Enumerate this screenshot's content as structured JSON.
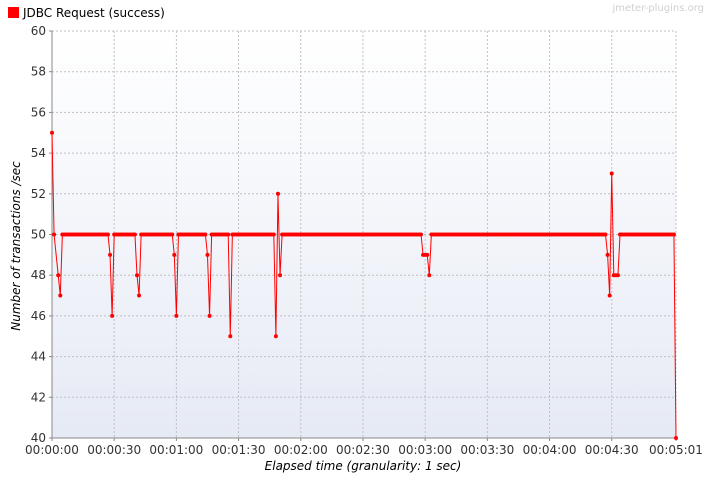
{
  "chart_data": {
    "type": "line",
    "legend_position": "top-left",
    "grid": true,
    "watermark": "jmeter-plugins.org",
    "xlabel": "Elapsed time (granularity: 1 sec)",
    "ylabel": "Number of transactions /sec",
    "xlim": [
      0,
      301
    ],
    "ylim": [
      40,
      60
    ],
    "x_ticks": [
      0,
      30,
      60,
      90,
      120,
      150,
      180,
      210,
      240,
      270,
      301
    ],
    "x_tick_labels": [
      "00:00:00",
      "00:00:30",
      "00:01:00",
      "00:01:30",
      "00:02:00",
      "00:02:30",
      "00:03:00",
      "00:03:30",
      "00:04:00",
      "00:04:30",
      "00:05:01"
    ],
    "y_ticks": [
      40,
      42,
      44,
      46,
      48,
      50,
      52,
      54,
      56,
      58,
      60
    ],
    "y_tick_labels": [
      "40",
      "42",
      "44",
      "46",
      "48",
      "50",
      "52",
      "54",
      "56",
      "58",
      "60"
    ],
    "colors": {
      "series": "#ff0000",
      "plot_bg_top": "#ffffff",
      "plot_bg_bottom": "#e6eaf5",
      "grid": "#c0c0c0"
    },
    "series": [
      {
        "name": "JDBC Request (success)",
        "color": "#ff0000",
        "points": [
          [
            0,
            55
          ],
          [
            1,
            50
          ],
          [
            3,
            48
          ],
          [
            4,
            47
          ],
          [
            5,
            50
          ],
          [
            6,
            50
          ],
          [
            7,
            50
          ],
          [
            8,
            50
          ],
          [
            9,
            50
          ],
          [
            10,
            50
          ],
          [
            11,
            50
          ],
          [
            12,
            50
          ],
          [
            13,
            50
          ],
          [
            14,
            50
          ],
          [
            15,
            50
          ],
          [
            16,
            50
          ],
          [
            17,
            50
          ],
          [
            18,
            50
          ],
          [
            19,
            50
          ],
          [
            20,
            50
          ],
          [
            21,
            50
          ],
          [
            22,
            50
          ],
          [
            23,
            50
          ],
          [
            24,
            50
          ],
          [
            25,
            50
          ],
          [
            26,
            50
          ],
          [
            27,
            50
          ],
          [
            28,
            49
          ],
          [
            29,
            46
          ],
          [
            30,
            50
          ],
          [
            31,
            50
          ],
          [
            32,
            50
          ],
          [
            33,
            50
          ],
          [
            34,
            50
          ],
          [
            35,
            50
          ],
          [
            36,
            50
          ],
          [
            37,
            50
          ],
          [
            38,
            50
          ],
          [
            39,
            50
          ],
          [
            40,
            50
          ],
          [
            41,
            48
          ],
          [
            42,
            47
          ],
          [
            43,
            50
          ],
          [
            44,
            50
          ],
          [
            45,
            50
          ],
          [
            46,
            50
          ],
          [
            47,
            50
          ],
          [
            48,
            50
          ],
          [
            49,
            50
          ],
          [
            50,
            50
          ],
          [
            51,
            50
          ],
          [
            52,
            50
          ],
          [
            53,
            50
          ],
          [
            54,
            50
          ],
          [
            55,
            50
          ],
          [
            56,
            50
          ],
          [
            57,
            50
          ],
          [
            58,
            50
          ],
          [
            59,
            49
          ],
          [
            60,
            46
          ],
          [
            61,
            50
          ],
          [
            62,
            50
          ],
          [
            63,
            50
          ],
          [
            64,
            50
          ],
          [
            65,
            50
          ],
          [
            66,
            50
          ],
          [
            67,
            50
          ],
          [
            68,
            50
          ],
          [
            69,
            50
          ],
          [
            70,
            50
          ],
          [
            71,
            50
          ],
          [
            72,
            50
          ],
          [
            73,
            50
          ],
          [
            74,
            50
          ],
          [
            75,
            49
          ],
          [
            76,
            46
          ],
          [
            77,
            50
          ],
          [
            78,
            50
          ],
          [
            79,
            50
          ],
          [
            80,
            50
          ],
          [
            81,
            50
          ],
          [
            82,
            50
          ],
          [
            83,
            50
          ],
          [
            84,
            50
          ],
          [
            85,
            50
          ],
          [
            86,
            45
          ],
          [
            87,
            50
          ],
          [
            88,
            50
          ],
          [
            89,
            50
          ],
          [
            90,
            50
          ],
          [
            91,
            50
          ],
          [
            92,
            50
          ],
          [
            93,
            50
          ],
          [
            94,
            50
          ],
          [
            95,
            50
          ],
          [
            96,
            50
          ],
          [
            97,
            50
          ],
          [
            98,
            50
          ],
          [
            99,
            50
          ],
          [
            100,
            50
          ],
          [
            101,
            50
          ],
          [
            102,
            50
          ],
          [
            103,
            50
          ],
          [
            104,
            50
          ],
          [
            105,
            50
          ],
          [
            106,
            50
          ],
          [
            107,
            50
          ],
          [
            108,
            45
          ],
          [
            109,
            52
          ],
          [
            110,
            48
          ],
          [
            111,
            50
          ],
          [
            112,
            50
          ],
          [
            113,
            50
          ],
          [
            114,
            50
          ],
          [
            115,
            50
          ],
          [
            116,
            50
          ],
          [
            117,
            50
          ],
          [
            118,
            50
          ],
          [
            119,
            50
          ],
          [
            120,
            50
          ],
          [
            121,
            50
          ],
          [
            122,
            50
          ],
          [
            123,
            50
          ],
          [
            124,
            50
          ],
          [
            125,
            50
          ],
          [
            126,
            50
          ],
          [
            127,
            50
          ],
          [
            128,
            50
          ],
          [
            129,
            50
          ],
          [
            130,
            50
          ],
          [
            131,
            50
          ],
          [
            132,
            50
          ],
          [
            133,
            50
          ],
          [
            134,
            50
          ],
          [
            135,
            50
          ],
          [
            136,
            50
          ],
          [
            137,
            50
          ],
          [
            138,
            50
          ],
          [
            139,
            50
          ],
          [
            140,
            50
          ],
          [
            141,
            50
          ],
          [
            142,
            50
          ],
          [
            143,
            50
          ],
          [
            144,
            50
          ],
          [
            145,
            50
          ],
          [
            146,
            50
          ],
          [
            147,
            50
          ],
          [
            148,
            50
          ],
          [
            149,
            50
          ],
          [
            150,
            50
          ],
          [
            151,
            50
          ],
          [
            152,
            50
          ],
          [
            153,
            50
          ],
          [
            154,
            50
          ],
          [
            155,
            50
          ],
          [
            156,
            50
          ],
          [
            157,
            50
          ],
          [
            158,
            50
          ],
          [
            159,
            50
          ],
          [
            160,
            50
          ],
          [
            161,
            50
          ],
          [
            162,
            50
          ],
          [
            163,
            50
          ],
          [
            164,
            50
          ],
          [
            165,
            50
          ],
          [
            166,
            50
          ],
          [
            167,
            50
          ],
          [
            168,
            50
          ],
          [
            169,
            50
          ],
          [
            170,
            50
          ],
          [
            171,
            50
          ],
          [
            172,
            50
          ],
          [
            173,
            50
          ],
          [
            174,
            50
          ],
          [
            175,
            50
          ],
          [
            176,
            50
          ],
          [
            177,
            50
          ],
          [
            178,
            50
          ],
          [
            179,
            49
          ],
          [
            180,
            49
          ],
          [
            181,
            49
          ],
          [
            182,
            48
          ],
          [
            183,
            50
          ],
          [
            184,
            50
          ],
          [
            185,
            50
          ],
          [
            186,
            50
          ],
          [
            187,
            50
          ],
          [
            188,
            50
          ],
          [
            189,
            50
          ],
          [
            190,
            50
          ],
          [
            191,
            50
          ],
          [
            192,
            50
          ],
          [
            193,
            50
          ],
          [
            194,
            50
          ],
          [
            195,
            50
          ],
          [
            196,
            50
          ],
          [
            197,
            50
          ],
          [
            198,
            50
          ],
          [
            199,
            50
          ],
          [
            200,
            50
          ],
          [
            201,
            50
          ],
          [
            202,
            50
          ],
          [
            203,
            50
          ],
          [
            204,
            50
          ],
          [
            205,
            50
          ],
          [
            206,
            50
          ],
          [
            207,
            50
          ],
          [
            208,
            50
          ],
          [
            209,
            50
          ],
          [
            210,
            50
          ],
          [
            211,
            50
          ],
          [
            212,
            50
          ],
          [
            213,
            50
          ],
          [
            214,
            50
          ],
          [
            215,
            50
          ],
          [
            216,
            50
          ],
          [
            217,
            50
          ],
          [
            218,
            50
          ],
          [
            219,
            50
          ],
          [
            220,
            50
          ],
          [
            221,
            50
          ],
          [
            222,
            50
          ],
          [
            223,
            50
          ],
          [
            224,
            50
          ],
          [
            225,
            50
          ],
          [
            226,
            50
          ],
          [
            227,
            50
          ],
          [
            228,
            50
          ],
          [
            229,
            50
          ],
          [
            230,
            50
          ],
          [
            231,
            50
          ],
          [
            232,
            50
          ],
          [
            233,
            50
          ],
          [
            234,
            50
          ],
          [
            235,
            50
          ],
          [
            236,
            50
          ],
          [
            237,
            50
          ],
          [
            238,
            50
          ],
          [
            239,
            50
          ],
          [
            240,
            50
          ],
          [
            241,
            50
          ],
          [
            242,
            50
          ],
          [
            243,
            50
          ],
          [
            244,
            50
          ],
          [
            245,
            50
          ],
          [
            246,
            50
          ],
          [
            247,
            50
          ],
          [
            248,
            50
          ],
          [
            249,
            50
          ],
          [
            250,
            50
          ],
          [
            251,
            50
          ],
          [
            252,
            50
          ],
          [
            253,
            50
          ],
          [
            254,
            50
          ],
          [
            255,
            50
          ],
          [
            256,
            50
          ],
          [
            257,
            50
          ],
          [
            258,
            50
          ],
          [
            259,
            50
          ],
          [
            260,
            50
          ],
          [
            261,
            50
          ],
          [
            262,
            50
          ],
          [
            263,
            50
          ],
          [
            264,
            50
          ],
          [
            265,
            50
          ],
          [
            266,
            50
          ],
          [
            267,
            50
          ],
          [
            268,
            49
          ],
          [
            269,
            47
          ],
          [
            270,
            53
          ],
          [
            271,
            48
          ],
          [
            272,
            48
          ],
          [
            273,
            48
          ],
          [
            274,
            50
          ],
          [
            275,
            50
          ],
          [
            276,
            50
          ],
          [
            277,
            50
          ],
          [
            278,
            50
          ],
          [
            279,
            50
          ],
          [
            280,
            50
          ],
          [
            281,
            50
          ],
          [
            282,
            50
          ],
          [
            283,
            50
          ],
          [
            284,
            50
          ],
          [
            285,
            50
          ],
          [
            286,
            50
          ],
          [
            287,
            50
          ],
          [
            288,
            50
          ],
          [
            289,
            50
          ],
          [
            290,
            50
          ],
          [
            291,
            50
          ],
          [
            292,
            50
          ],
          [
            293,
            50
          ],
          [
            294,
            50
          ],
          [
            295,
            50
          ],
          [
            296,
            50
          ],
          [
            297,
            50
          ],
          [
            298,
            50
          ],
          [
            299,
            50
          ],
          [
            300,
            50
          ],
          [
            301,
            40
          ]
        ]
      }
    ]
  }
}
